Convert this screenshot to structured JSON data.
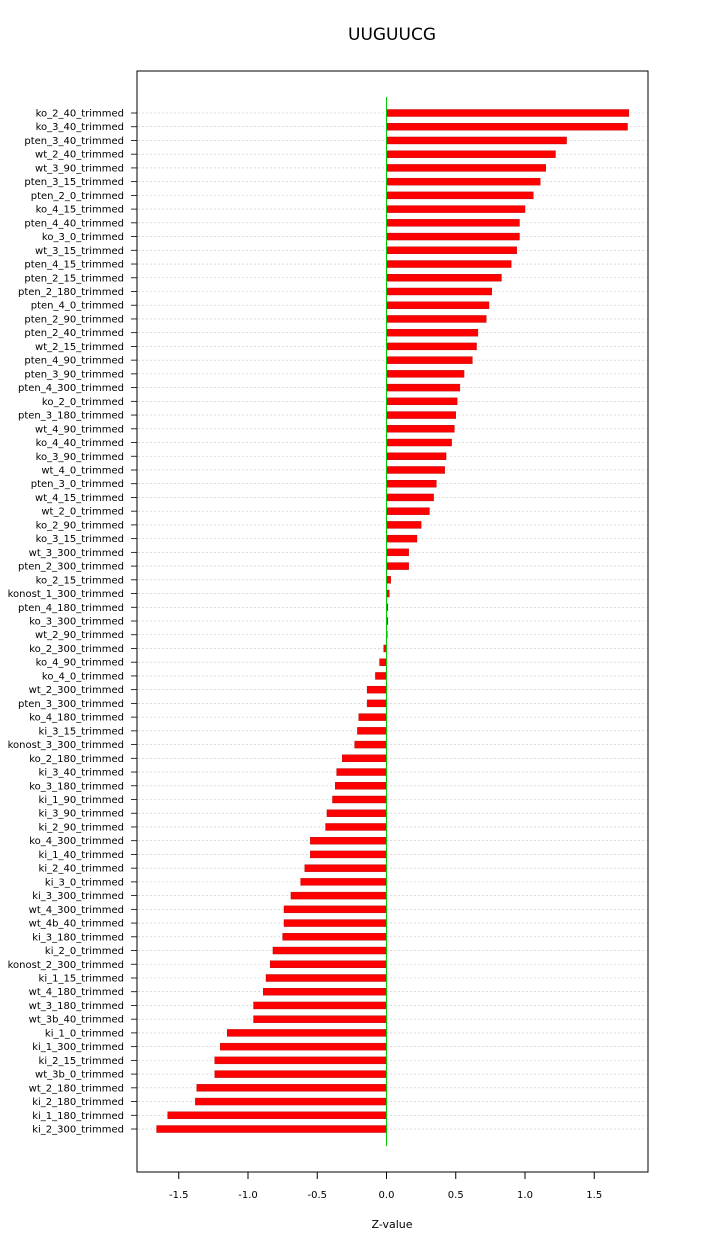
{
  "chart_data": {
    "type": "bar",
    "orientation": "horizontal",
    "title": "UUGUUCG",
    "xlabel": "Z-value",
    "ylabel": "",
    "xlim": [
      -1.8,
      1.9
    ],
    "xticks": [
      -1.5,
      -1.0,
      -0.5,
      0.0,
      0.5,
      1.0,
      1.5
    ],
    "xtick_labels": [
      "-1.5",
      "-1.0",
      "-0.5",
      "0.0",
      "0.5",
      "1.0",
      "1.5"
    ],
    "grid": true,
    "bar_color": "#ff0000",
    "zero_line_color": "#00cc00",
    "categories": [
      "ko_2_40_trimmed",
      "ko_3_40_trimmed",
      "pten_3_40_trimmed",
      "wt_2_40_trimmed",
      "wt_3_90_trimmed",
      "pten_3_15_trimmed",
      "pten_2_0_trimmed",
      "ko_4_15_trimmed",
      "pten_4_40_trimmed",
      "ko_3_0_trimmed",
      "wt_3_15_trimmed",
      "pten_4_15_trimmed",
      "pten_2_15_trimmed",
      "pten_2_180_trimmed",
      "pten_4_0_trimmed",
      "pten_2_90_trimmed",
      "pten_2_40_trimmed",
      "wt_2_15_trimmed",
      "pten_4_90_trimmed",
      "pten_3_90_trimmed",
      "pten_4_300_trimmed",
      "ko_2_0_trimmed",
      "pten_3_180_trimmed",
      "wt_4_90_trimmed",
      "ko_4_40_trimmed",
      "ko_3_90_trimmed",
      "wt_4_0_trimmed",
      "pten_3_0_trimmed",
      "wt_4_15_trimmed",
      "wt_2_0_trimmed",
      "ko_2_90_trimmed",
      "ko_3_15_trimmed",
      "wt_3_300_trimmed",
      "pten_2_300_trimmed",
      "ko_2_15_trimmed",
      "konost_1_300_trimmed",
      "pten_4_180_trimmed",
      "ko_3_300_trimmed",
      "wt_2_90_trimmed",
      "ko_2_300_trimmed",
      "ko_4_90_trimmed",
      "ko_4_0_trimmed",
      "wt_2_300_trimmed",
      "pten_3_300_trimmed",
      "ko_4_180_trimmed",
      "ki_3_15_trimmed",
      "konost_3_300_trimmed",
      "ko_2_180_trimmed",
      "ki_3_40_trimmed",
      "ko_3_180_trimmed",
      "ki_1_90_trimmed",
      "ki_3_90_trimmed",
      "ki_2_90_trimmed",
      "ko_4_300_trimmed",
      "ki_1_40_trimmed",
      "ki_2_40_trimmed",
      "ki_3_0_trimmed",
      "ki_3_300_trimmed",
      "wt_4_300_trimmed",
      "wt_4b_40_trimmed",
      "ki_3_180_trimmed",
      "ki_2_0_trimmed",
      "konost_2_300_trimmed",
      "ki_1_15_trimmed",
      "wt_4_180_trimmed",
      "wt_3_180_trimmed",
      "wt_3b_40_trimmed",
      "ki_1_0_trimmed",
      "ki_1_300_trimmed",
      "ki_2_15_trimmed",
      "wt_3b_0_trimmed",
      "wt_2_180_trimmed",
      "ki_2_180_trimmed",
      "ki_1_180_trimmed",
      "ki_2_300_trimmed"
    ],
    "values": [
      1.75,
      1.74,
      1.3,
      1.22,
      1.15,
      1.11,
      1.06,
      1.0,
      0.96,
      0.96,
      0.94,
      0.9,
      0.83,
      0.76,
      0.74,
      0.72,
      0.66,
      0.65,
      0.62,
      0.56,
      0.53,
      0.51,
      0.5,
      0.49,
      0.47,
      0.43,
      0.42,
      0.36,
      0.34,
      0.31,
      0.25,
      0.22,
      0.16,
      0.16,
      0.03,
      0.02,
      0.01,
      0.01,
      0.005,
      -0.02,
      -0.05,
      -0.08,
      -0.14,
      -0.14,
      -0.2,
      -0.21,
      -0.23,
      -0.32,
      -0.36,
      -0.37,
      -0.39,
      -0.43,
      -0.44,
      -0.55,
      -0.55,
      -0.59,
      -0.62,
      -0.69,
      -0.74,
      -0.74,
      -0.75,
      -0.82,
      -0.84,
      -0.87,
      -0.89,
      -0.96,
      -0.96,
      -1.15,
      -1.2,
      -1.24,
      -1.24,
      -1.37,
      -1.38,
      -1.58,
      -1.66
    ]
  }
}
